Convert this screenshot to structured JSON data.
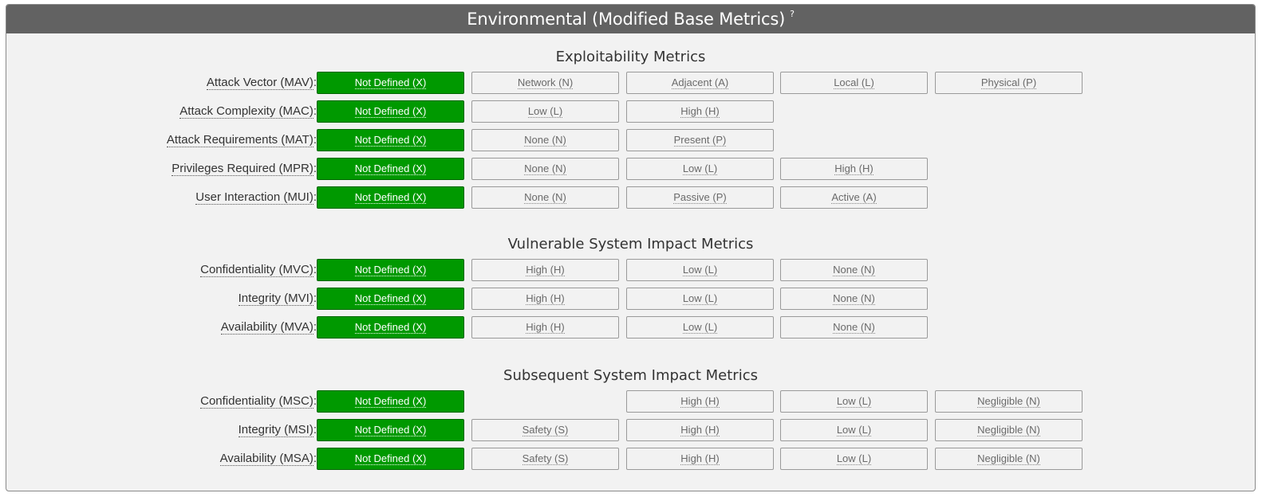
{
  "panel": {
    "title": "Environmental (Modified Base Metrics)",
    "help": "?"
  },
  "sections": [
    {
      "title": "Exploitability Metrics",
      "rows": [
        {
          "label": "Attack Vector (MAV):",
          "options": [
            "Not Defined (X)",
            "Network (N)",
            "Adjacent (A)",
            "Local (L)",
            "Physical (P)"
          ],
          "selected": 0
        },
        {
          "label": "Attack Complexity (MAC):",
          "options": [
            "Not Defined (X)",
            "Low (L)",
            "High (H)"
          ],
          "selected": 0
        },
        {
          "label": "Attack Requirements (MAT):",
          "options": [
            "Not Defined (X)",
            "None (N)",
            "Present (P)"
          ],
          "selected": 0
        },
        {
          "label": "Privileges Required (MPR):",
          "options": [
            "Not Defined (X)",
            "None (N)",
            "Low (L)",
            "High (H)"
          ],
          "selected": 0
        },
        {
          "label": "User Interaction (MUI):",
          "options": [
            "Not Defined (X)",
            "None (N)",
            "Passive (P)",
            "Active (A)"
          ],
          "selected": 0
        }
      ]
    },
    {
      "title": "Vulnerable System Impact Metrics",
      "rows": [
        {
          "label": "Confidentiality (MVC):",
          "options": [
            "Not Defined (X)",
            "High (H)",
            "Low (L)",
            "None (N)"
          ],
          "selected": 0
        },
        {
          "label": "Integrity (MVI):",
          "options": [
            "Not Defined (X)",
            "High (H)",
            "Low (L)",
            "None (N)"
          ],
          "selected": 0
        },
        {
          "label": "Availability (MVA):",
          "options": [
            "Not Defined (X)",
            "High (H)",
            "Low (L)",
            "None (N)"
          ],
          "selected": 0
        }
      ]
    },
    {
      "title": "Subsequent System Impact Metrics",
      "rows": [
        {
          "label": "Confidentiality (MSC):",
          "options": [
            "Not Defined (X)",
            null,
            "High (H)",
            "Low (L)",
            "Negligible (N)"
          ],
          "selected": 0
        },
        {
          "label": "Integrity (MSI):",
          "options": [
            "Not Defined (X)",
            "Safety (S)",
            "High (H)",
            "Low (L)",
            "Negligible (N)"
          ],
          "selected": 0
        },
        {
          "label": "Availability (MSA):",
          "options": [
            "Not Defined (X)",
            "Safety (S)",
            "High (H)",
            "Low (L)",
            "Negligible (N)"
          ],
          "selected": 0
        }
      ]
    }
  ],
  "colors": {
    "header_bg": "#626262",
    "selected_bg": "#009900",
    "panel_bg": "#f2f2f2"
  }
}
